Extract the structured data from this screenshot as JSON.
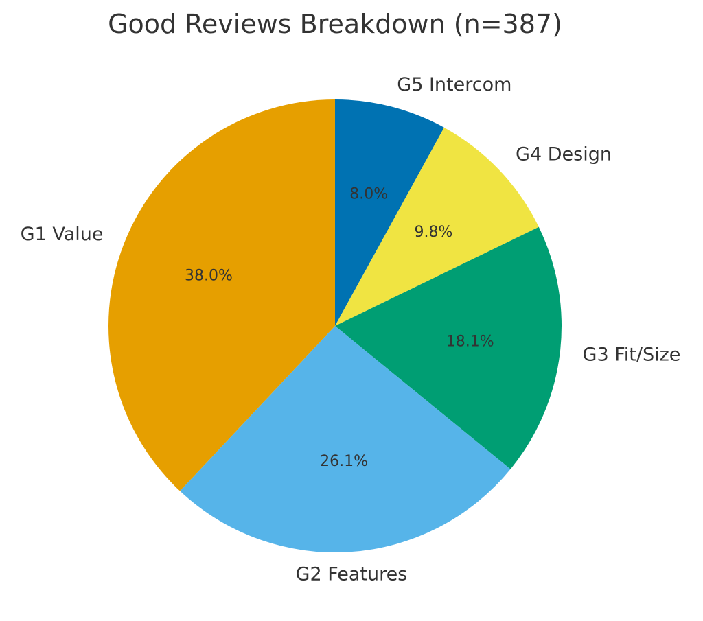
{
  "chart_data": {
    "type": "pie",
    "title": "Good Reviews Breakdown (n=387)",
    "start_angle_deg": 90,
    "direction": "clockwise",
    "slices": [
      {
        "label": "G5 Intercom",
        "value": 8.0,
        "pct_label": "8.0%",
        "color": "#0072B2"
      },
      {
        "label": "G4 Design",
        "value": 9.8,
        "pct_label": "9.8%",
        "color": "#F0E442"
      },
      {
        "label": "G3 Fit/Size",
        "value": 18.1,
        "pct_label": "18.1%",
        "color": "#009E73"
      },
      {
        "label": "G2 Features",
        "value": 26.1,
        "pct_label": "26.1%",
        "color": "#56B4E9"
      },
      {
        "label": "G1 Value",
        "value": 38.0,
        "pct_label": "38.0%",
        "color": "#E69F00"
      }
    ]
  }
}
